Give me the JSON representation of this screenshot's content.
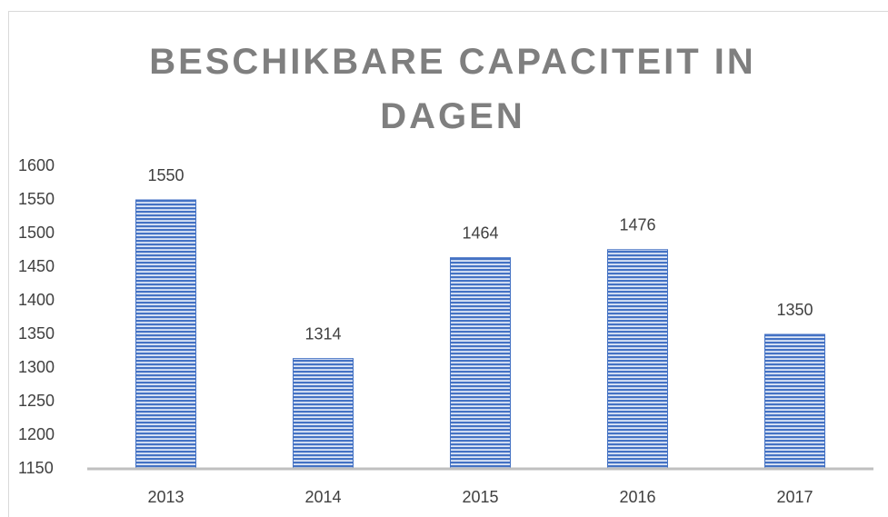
{
  "chart_data": {
    "type": "bar",
    "title": "BESCHIKBARE CAPACITEIT IN DAGEN",
    "categories": [
      "2013",
      "2014",
      "2015",
      "2016",
      "2017"
    ],
    "values": [
      1550,
      1314,
      1464,
      1476,
      1350
    ],
    "color": "#4472c4",
    "ylim": [
      1150,
      1600
    ],
    "yticks": [
      1150,
      1200,
      1250,
      1300,
      1350,
      1400,
      1450,
      1500,
      1550,
      1600
    ],
    "grid": false
  }
}
